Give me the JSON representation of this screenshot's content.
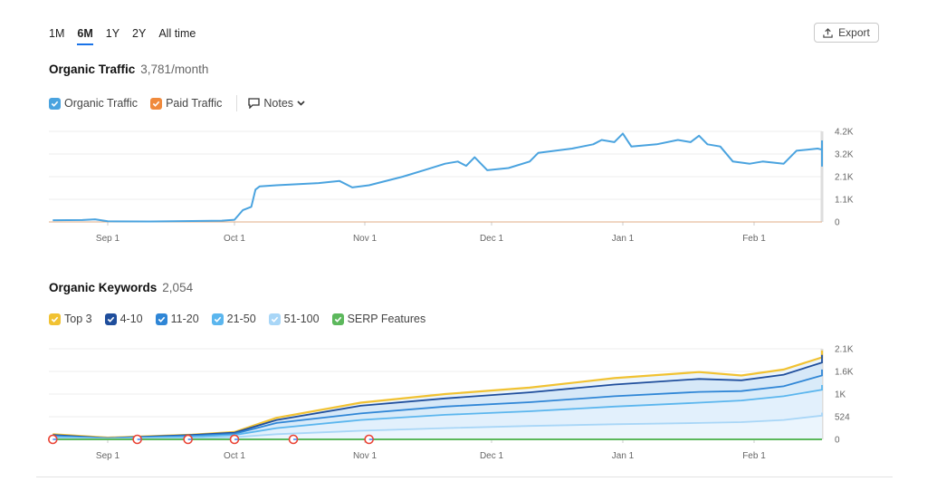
{
  "range_tabs": [
    "1M",
    "6M",
    "1Y",
    "2Y",
    "All time"
  ],
  "active_range": "6M",
  "export_label": "Export",
  "colors": {
    "organic": "#4aa3df",
    "paid": "#f08a3c",
    "top3": "#f1c232",
    "k4_10": "#1f4e9c",
    "k11_20": "#2f86d6",
    "k21_50": "#5bb6ee",
    "k51_100": "#a8d6f7",
    "serp": "#5cb85c"
  },
  "traffic": {
    "title": "Organic Traffic",
    "value": "3,781/month",
    "legend": {
      "organic": "Organic Traffic",
      "paid": "Paid Traffic",
      "notes": "Notes"
    }
  },
  "keywords": {
    "title": "Organic Keywords",
    "value": "2,054",
    "legend": {
      "top3": "Top 3",
      "k4_10": "4-10",
      "k11_20": "11-20",
      "k21_50": "21-50",
      "k51_100": "51-100",
      "serp": "SERP Features"
    }
  },
  "chart_data": [
    {
      "type": "line",
      "x_ticks": [
        "Sep 1",
        "Oct 1",
        "Nov 1",
        "Dec 1",
        "Jan 1",
        "Feb 1"
      ],
      "y_ticks": [
        "4.2K",
        "3.2K",
        "2.1K",
        "1.1K",
        "0"
      ],
      "ylim": [
        0,
        4200
      ],
      "x_range_days": [
        -13,
        166
      ],
      "series": [
        {
          "name": "Organic Traffic",
          "points": [
            [
              -13,
              80
            ],
            [
              -6,
              90
            ],
            [
              -3,
              120
            ],
            [
              0,
              30
            ],
            [
              10,
              20
            ],
            [
              20,
              40
            ],
            [
              27,
              60
            ],
            [
              30,
              100
            ],
            [
              32,
              550
            ],
            [
              34,
              700
            ],
            [
              35,
              1500
            ],
            [
              36,
              1650
            ],
            [
              40,
              1700
            ],
            [
              50,
              1800
            ],
            [
              55,
              1900
            ],
            [
              58,
              1600
            ],
            [
              62,
              1700
            ],
            [
              70,
              2100
            ],
            [
              75,
              2400
            ],
            [
              80,
              2700
            ],
            [
              83,
              2800
            ],
            [
              85,
              2600
            ],
            [
              87,
              3000
            ],
            [
              90,
              2400
            ],
            [
              95,
              2500
            ],
            [
              100,
              2800
            ],
            [
              102,
              3200
            ],
            [
              110,
              3400
            ],
            [
              115,
              3600
            ],
            [
              117,
              3800
            ],
            [
              120,
              3700
            ],
            [
              122,
              4100
            ],
            [
              124,
              3500
            ],
            [
              130,
              3600
            ],
            [
              135,
              3800
            ],
            [
              138,
              3700
            ],
            [
              140,
              4000
            ],
            [
              142,
              3600
            ],
            [
              145,
              3500
            ],
            [
              148,
              2800
            ],
            [
              152,
              2700
            ],
            [
              155,
              2800
            ],
            [
              160,
              2700
            ],
            [
              163,
              3300
            ],
            [
              168,
              3400
            ],
            [
              175,
              3350
            ],
            [
              178,
              3100
            ],
            [
              180,
              2600
            ],
            [
              183,
              2700
            ],
            [
              186,
              2800
            ],
            [
              188,
              3400
            ],
            [
              193,
              3500
            ],
            [
              196,
              3781
            ]
          ]
        },
        {
          "name": "Paid Traffic",
          "points": [
            [
              -13,
              0
            ],
            [
              196,
              0
            ]
          ]
        }
      ]
    },
    {
      "type": "area",
      "x_ticks": [
        "Sep 1",
        "Oct 1",
        "Nov 1",
        "Dec 1",
        "Jan 1",
        "Feb 1"
      ],
      "y_ticks": [
        "2.1K",
        "1.6K",
        "1K",
        "524",
        "0"
      ],
      "ylim": [
        0,
        2100
      ],
      "x_range_days": [
        -13,
        166
      ],
      "series": [
        {
          "name": "Top 3",
          "values_at": [
            [
              -13,
              120
            ],
            [
              0,
              40
            ],
            [
              20,
              110
            ],
            [
              30,
              170
            ],
            [
              40,
              500
            ],
            [
              60,
              850
            ],
            [
              80,
              1050
            ],
            [
              100,
              1200
            ],
            [
              120,
              1420
            ],
            [
              140,
              1560
            ],
            [
              150,
              1480
            ],
            [
              160,
              1620
            ],
            [
              175,
              1900
            ],
            [
              190,
              2060
            ],
            [
              196,
              2030
            ]
          ]
        },
        {
          "name": "4-10",
          "values_at": [
            [
              -13,
              100
            ],
            [
              0,
              30
            ],
            [
              20,
              100
            ],
            [
              30,
              155
            ],
            [
              40,
              450
            ],
            [
              60,
              780
            ],
            [
              80,
              950
            ],
            [
              100,
              1090
            ],
            [
              120,
              1270
            ],
            [
              140,
              1400
            ],
            [
              150,
              1370
            ],
            [
              160,
              1500
            ],
            [
              175,
              1780
            ],
            [
              190,
              1960
            ],
            [
              196,
              1940
            ]
          ]
        },
        {
          "name": "11-20",
          "values_at": [
            [
              -13,
              80
            ],
            [
              0,
              25
            ],
            [
              20,
              85
            ],
            [
              30,
              130
            ],
            [
              40,
              380
            ],
            [
              60,
              600
            ],
            [
              80,
              760
            ],
            [
              100,
              860
            ],
            [
              120,
              1000
            ],
            [
              140,
              1100
            ],
            [
              150,
              1120
            ],
            [
              160,
              1230
            ],
            [
              175,
              1480
            ],
            [
              190,
              1620
            ],
            [
              196,
              1600
            ]
          ]
        },
        {
          "name": "21-50",
          "values_at": [
            [
              -13,
              60
            ],
            [
              0,
              20
            ],
            [
              20,
              60
            ],
            [
              30,
              100
            ],
            [
              40,
              260
            ],
            [
              60,
              450
            ],
            [
              80,
              570
            ],
            [
              100,
              650
            ],
            [
              120,
              760
            ],
            [
              140,
              850
            ],
            [
              150,
              900
            ],
            [
              160,
              1000
            ],
            [
              175,
              1150
            ],
            [
              190,
              1260
            ],
            [
              196,
              1230
            ]
          ]
        },
        {
          "name": "51-100",
          "values_at": [
            [
              -13,
              30
            ],
            [
              0,
              10
            ],
            [
              20,
              30
            ],
            [
              30,
              50
            ],
            [
              40,
              120
            ],
            [
              60,
              200
            ],
            [
              80,
              260
            ],
            [
              100,
              310
            ],
            [
              120,
              350
            ],
            [
              140,
              380
            ],
            [
              150,
              400
            ],
            [
              160,
              450
            ],
            [
              175,
              550
            ],
            [
              190,
              620
            ],
            [
              196,
              600
            ]
          ]
        },
        {
          "name": "SERP Features",
          "values_at": [
            [
              -13,
              0
            ],
            [
              196,
              0
            ]
          ]
        }
      ]
    }
  ]
}
